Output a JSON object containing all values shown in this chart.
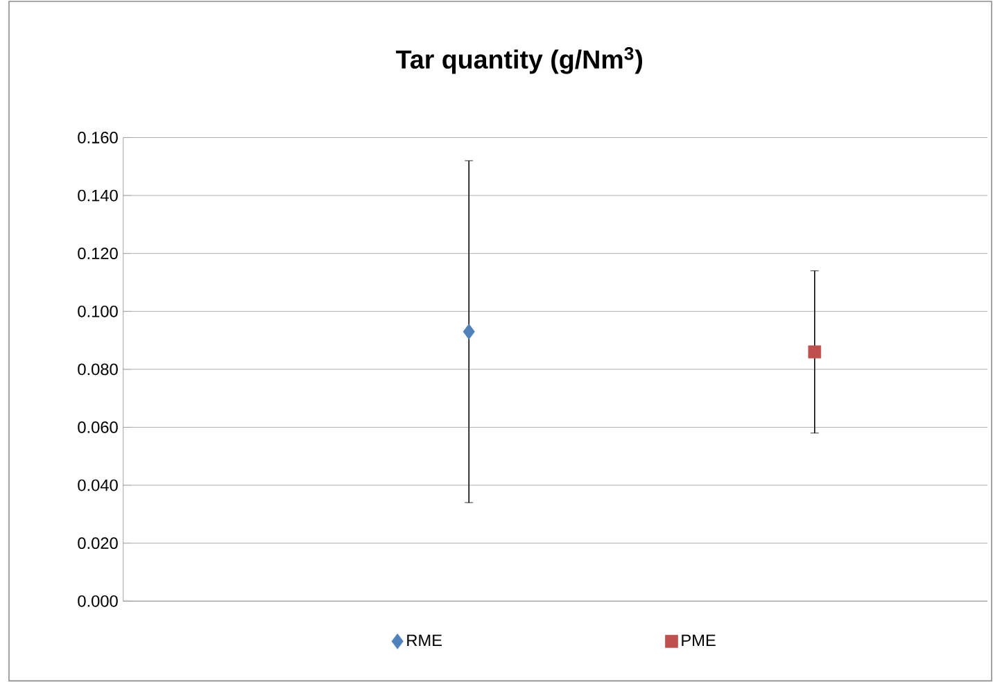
{
  "chart_data": {
    "type": "scatter",
    "title": "Tar quantity (g/Nm$^{3}$)",
    "categories": [
      null,
      null
    ],
    "series": [
      {
        "name": "RME",
        "color": "#4f81bd",
        "marker": "diamond",
        "values": [
          0.093,
          null
        ],
        "errors": [
          0.059,
          null
        ]
      },
      {
        "name": "PME",
        "color": "#c0504d",
        "marker": "square",
        "values": [
          null,
          0.086
        ],
        "errors": [
          null,
          0.028
        ]
      }
    ],
    "ylim": [
      0,
      0.16
    ],
    "yticks": [
      {
        "value": 0,
        "label": "0.000"
      },
      {
        "value": 0.02,
        "label": "0.020"
      },
      {
        "value": 0.04,
        "label": "0.040"
      },
      {
        "value": 0.06,
        "label": "0.060"
      },
      {
        "value": 0.08,
        "label": "0.080"
      },
      {
        "value": 0.1,
        "label": "0.100"
      },
      {
        "value": 0.12,
        "label": "0.120"
      },
      {
        "value": 0.14,
        "label": "0.140"
      },
      {
        "value": 0.16,
        "label": "0.160"
      }
    ],
    "grid": "y",
    "legend": "bottom",
    "tick_labels": "y"
  }
}
